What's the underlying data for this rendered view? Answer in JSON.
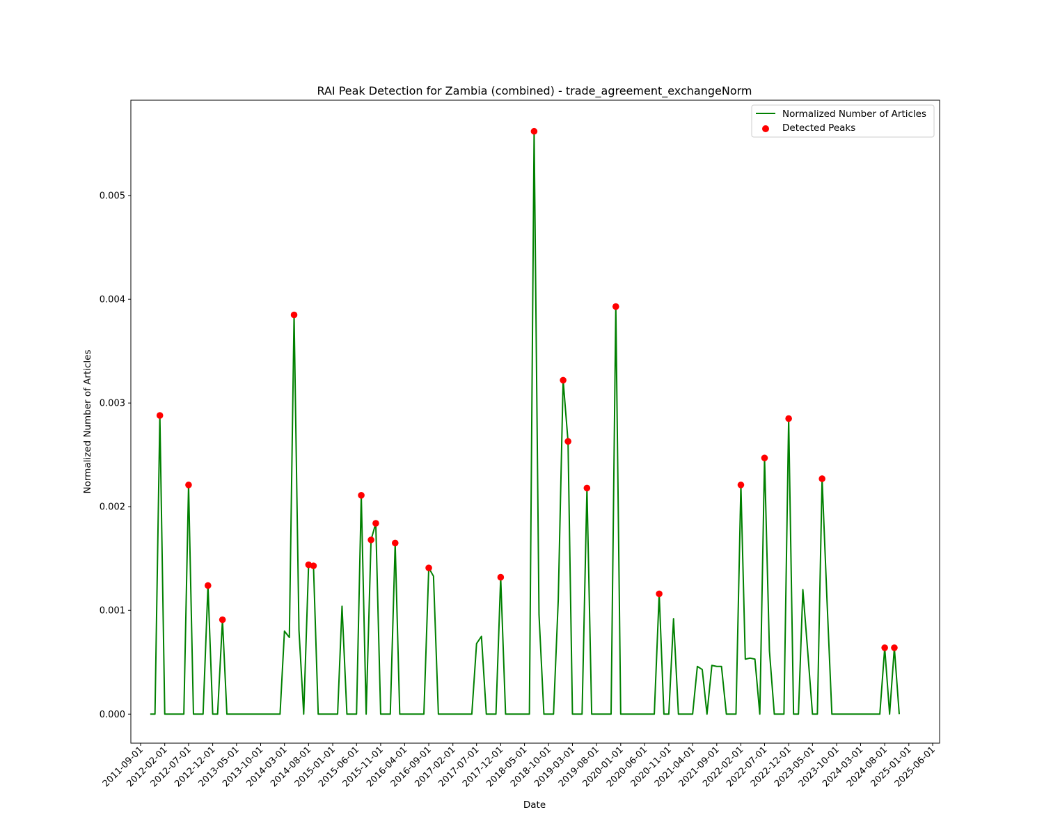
{
  "chart_data": {
    "type": "line",
    "title": "RAI Peak Detection for Zambia (combined) - trade_agreement_exchangeNorm",
    "xlabel": "Date",
    "ylabel": "Normalized Number of Articles",
    "xlim": [
      "2011-07-01",
      "2025-07-15"
    ],
    "ylim": [
      -0.00028,
      0.00592
    ],
    "yticks": [
      0,
      0.001,
      0.002,
      0.003,
      0.004,
      0.005
    ],
    "ytick_labels": [
      "0.000",
      "0.001",
      "0.002",
      "0.003",
      "0.004",
      "0.005"
    ],
    "xticks": [
      "2011-09-01",
      "2012-02-01",
      "2012-07-01",
      "2012-12-01",
      "2013-05-01",
      "2013-10-01",
      "2014-03-01",
      "2014-08-01",
      "2015-01-01",
      "2015-06-01",
      "2015-11-01",
      "2016-04-01",
      "2016-09-01",
      "2017-02-01",
      "2017-07-01",
      "2017-12-01",
      "2018-05-01",
      "2018-10-01",
      "2019-03-01",
      "2019-08-01",
      "2020-01-01",
      "2020-06-01",
      "2020-11-01",
      "2021-04-01",
      "2021-09-01",
      "2022-02-01",
      "2022-07-01",
      "2022-12-01",
      "2023-05-01",
      "2023-10-01",
      "2024-03-01",
      "2024-08-01",
      "2025-01-01",
      "2025-06-01"
    ],
    "legend": {
      "placement": "top-right",
      "entries": [
        "Normalized Number of Articles",
        "Detected Peaks"
      ]
    },
    "colors": {
      "line": "#008000",
      "peaks": "#ff0000"
    },
    "grid": false,
    "series": [
      {
        "name": "Normalized Number of Articles",
        "type": "line",
        "points": [
          [
            "2011-11-01",
            0
          ],
          [
            "2011-12-01",
            0
          ],
          [
            "2012-01-01",
            0.00288
          ],
          [
            "2012-02-01",
            0
          ],
          [
            "2012-03-01",
            0
          ],
          [
            "2012-04-01",
            0
          ],
          [
            "2012-05-01",
            0
          ],
          [
            "2012-06-01",
            0
          ],
          [
            "2012-07-01",
            0.00221
          ],
          [
            "2012-08-01",
            0
          ],
          [
            "2012-09-01",
            0
          ],
          [
            "2012-10-01",
            0
          ],
          [
            "2012-11-01",
            0.00124
          ],
          [
            "2012-12-01",
            0
          ],
          [
            "2013-01-01",
            0
          ],
          [
            "2013-02-01",
            0.00091
          ],
          [
            "2013-03-01",
            0
          ],
          [
            "2013-04-01",
            0
          ],
          [
            "2013-05-01",
            0
          ],
          [
            "2013-06-01",
            0
          ],
          [
            "2013-07-01",
            0
          ],
          [
            "2013-08-01",
            0
          ],
          [
            "2013-09-01",
            0
          ],
          [
            "2013-10-01",
            0
          ],
          [
            "2013-11-01",
            0
          ],
          [
            "2013-12-01",
            0
          ],
          [
            "2014-01-01",
            0
          ],
          [
            "2014-02-01",
            0
          ],
          [
            "2014-03-01",
            0.0008
          ],
          [
            "2014-04-01",
            0.00074
          ],
          [
            "2014-05-01",
            0.00385
          ],
          [
            "2014-06-01",
            0.00081
          ],
          [
            "2014-07-01",
            0
          ],
          [
            "2014-08-01",
            0.00144
          ],
          [
            "2014-09-01",
            0.00143
          ],
          [
            "2014-10-01",
            0
          ],
          [
            "2014-11-01",
            0
          ],
          [
            "2014-12-01",
            0
          ],
          [
            "2015-01-01",
            0
          ],
          [
            "2015-02-01",
            0
          ],
          [
            "2015-03-01",
            0.00104
          ],
          [
            "2015-04-01",
            0
          ],
          [
            "2015-05-01",
            0
          ],
          [
            "2015-06-01",
            0
          ],
          [
            "2015-07-01",
            0.00211
          ],
          [
            "2015-08-01",
            0
          ],
          [
            "2015-09-01",
            0.00168
          ],
          [
            "2015-10-01",
            0.00184
          ],
          [
            "2015-11-01",
            0
          ],
          [
            "2015-12-01",
            0
          ],
          [
            "2016-01-01",
            0
          ],
          [
            "2016-02-01",
            0.00165
          ],
          [
            "2016-03-01",
            0
          ],
          [
            "2016-04-01",
            0
          ],
          [
            "2016-05-01",
            0
          ],
          [
            "2016-06-01",
            0
          ],
          [
            "2016-07-01",
            0
          ],
          [
            "2016-08-01",
            0
          ],
          [
            "2016-09-01",
            0.00141
          ],
          [
            "2016-10-01",
            0.00133
          ],
          [
            "2016-11-01",
            0
          ],
          [
            "2016-12-01",
            0
          ],
          [
            "2017-01-01",
            0
          ],
          [
            "2017-02-01",
            0
          ],
          [
            "2017-03-01",
            0
          ],
          [
            "2017-04-01",
            0
          ],
          [
            "2017-05-01",
            0
          ],
          [
            "2017-06-01",
            0
          ],
          [
            "2017-07-01",
            0.00068
          ],
          [
            "2017-08-01",
            0.00075
          ],
          [
            "2017-09-01",
            0
          ],
          [
            "2017-10-01",
            0
          ],
          [
            "2017-11-01",
            0
          ],
          [
            "2017-12-01",
            0.00132
          ],
          [
            "2018-01-01",
            0
          ],
          [
            "2018-02-01",
            0
          ],
          [
            "2018-03-01",
            0
          ],
          [
            "2018-04-01",
            0
          ],
          [
            "2018-05-01",
            0
          ],
          [
            "2018-06-01",
            0
          ],
          [
            "2018-07-01",
            0.00562
          ],
          [
            "2018-08-01",
            0.00096
          ],
          [
            "2018-09-01",
            0
          ],
          [
            "2018-10-01",
            0
          ],
          [
            "2018-11-01",
            0
          ],
          [
            "2018-12-01",
            0.0011
          ],
          [
            "2019-01-01",
            0.00322
          ],
          [
            "2019-02-01",
            0.00263
          ],
          [
            "2019-03-01",
            0
          ],
          [
            "2019-04-01",
            0
          ],
          [
            "2019-05-01",
            0
          ],
          [
            "2019-06-01",
            0.00218
          ],
          [
            "2019-07-01",
            0
          ],
          [
            "2019-08-01",
            0
          ],
          [
            "2019-09-01",
            0
          ],
          [
            "2019-10-01",
            0
          ],
          [
            "2019-11-01",
            0
          ],
          [
            "2019-12-01",
            0.00393
          ],
          [
            "2020-01-01",
            0
          ],
          [
            "2020-02-01",
            0
          ],
          [
            "2020-03-01",
            0
          ],
          [
            "2020-04-01",
            0
          ],
          [
            "2020-05-01",
            0
          ],
          [
            "2020-06-01",
            0
          ],
          [
            "2020-07-01",
            0
          ],
          [
            "2020-08-01",
            0
          ],
          [
            "2020-09-01",
            0.00116
          ],
          [
            "2020-10-01",
            0
          ],
          [
            "2020-11-01",
            0
          ],
          [
            "2020-12-01",
            0.00092
          ],
          [
            "2021-01-01",
            0
          ],
          [
            "2021-02-01",
            0
          ],
          [
            "2021-03-01",
            0
          ],
          [
            "2021-04-01",
            0
          ],
          [
            "2021-05-01",
            0.00046
          ],
          [
            "2021-06-01",
            0.00043
          ],
          [
            "2021-07-01",
            0
          ],
          [
            "2021-08-01",
            0.00047
          ],
          [
            "2021-09-01",
            0.00046
          ],
          [
            "2021-10-01",
            0.00046
          ],
          [
            "2021-11-01",
            0
          ],
          [
            "2021-12-01",
            0
          ],
          [
            "2022-01-01",
            0
          ],
          [
            "2022-02-01",
            0.00221
          ],
          [
            "2022-03-01",
            0.00053
          ],
          [
            "2022-04-01",
            0.00054
          ],
          [
            "2022-05-01",
            0.00053
          ],
          [
            "2022-06-01",
            0
          ],
          [
            "2022-07-01",
            0.00247
          ],
          [
            "2022-08-01",
            0.00061
          ],
          [
            "2022-09-01",
            0
          ],
          [
            "2022-10-01",
            0
          ],
          [
            "2022-11-01",
            0
          ],
          [
            "2022-12-01",
            0.00285
          ],
          [
            "2023-01-01",
            0
          ],
          [
            "2023-02-01",
            0
          ],
          [
            "2023-03-01",
            0.0012
          ],
          [
            "2023-04-01",
            0.0006
          ],
          [
            "2023-05-01",
            0
          ],
          [
            "2023-06-01",
            0
          ],
          [
            "2023-07-01",
            0.00227
          ],
          [
            "2023-08-01",
            0.0011
          ],
          [
            "2023-09-01",
            0
          ],
          [
            "2023-10-01",
            0
          ],
          [
            "2023-11-01",
            0
          ],
          [
            "2023-12-01",
            0
          ],
          [
            "2024-01-01",
            0
          ],
          [
            "2024-02-01",
            0
          ],
          [
            "2024-03-01",
            0
          ],
          [
            "2024-04-01",
            0
          ],
          [
            "2024-05-01",
            0
          ],
          [
            "2024-06-01",
            0
          ],
          [
            "2024-07-01",
            0
          ],
          [
            "2024-08-01",
            0.00064
          ],
          [
            "2024-09-01",
            0
          ],
          [
            "2024-10-01",
            0.00064
          ],
          [
            "2024-11-01",
            0
          ]
        ]
      },
      {
        "name": "Detected Peaks",
        "type": "scatter",
        "points": [
          [
            "2012-01-01",
            0.00288
          ],
          [
            "2012-07-01",
            0.00221
          ],
          [
            "2012-11-01",
            0.00124
          ],
          [
            "2013-02-01",
            0.00091
          ],
          [
            "2014-05-01",
            0.00385
          ],
          [
            "2014-08-01",
            0.00144
          ],
          [
            "2014-09-01",
            0.00143
          ],
          [
            "2015-07-01",
            0.00211
          ],
          [
            "2015-09-01",
            0.00168
          ],
          [
            "2015-10-01",
            0.00184
          ],
          [
            "2016-02-01",
            0.00165
          ],
          [
            "2016-09-01",
            0.00141
          ],
          [
            "2017-12-01",
            0.00132
          ],
          [
            "2018-07-01",
            0.00562
          ],
          [
            "2019-01-01",
            0.00322
          ],
          [
            "2019-02-01",
            0.00263
          ],
          [
            "2019-06-01",
            0.00218
          ],
          [
            "2019-12-01",
            0.00393
          ],
          [
            "2020-09-01",
            0.00116
          ],
          [
            "2022-02-01",
            0.00221
          ],
          [
            "2022-07-01",
            0.00247
          ],
          [
            "2022-12-01",
            0.00285
          ],
          [
            "2023-07-01",
            0.00227
          ],
          [
            "2024-08-01",
            0.00064
          ],
          [
            "2024-10-01",
            0.00064
          ]
        ]
      }
    ]
  }
}
